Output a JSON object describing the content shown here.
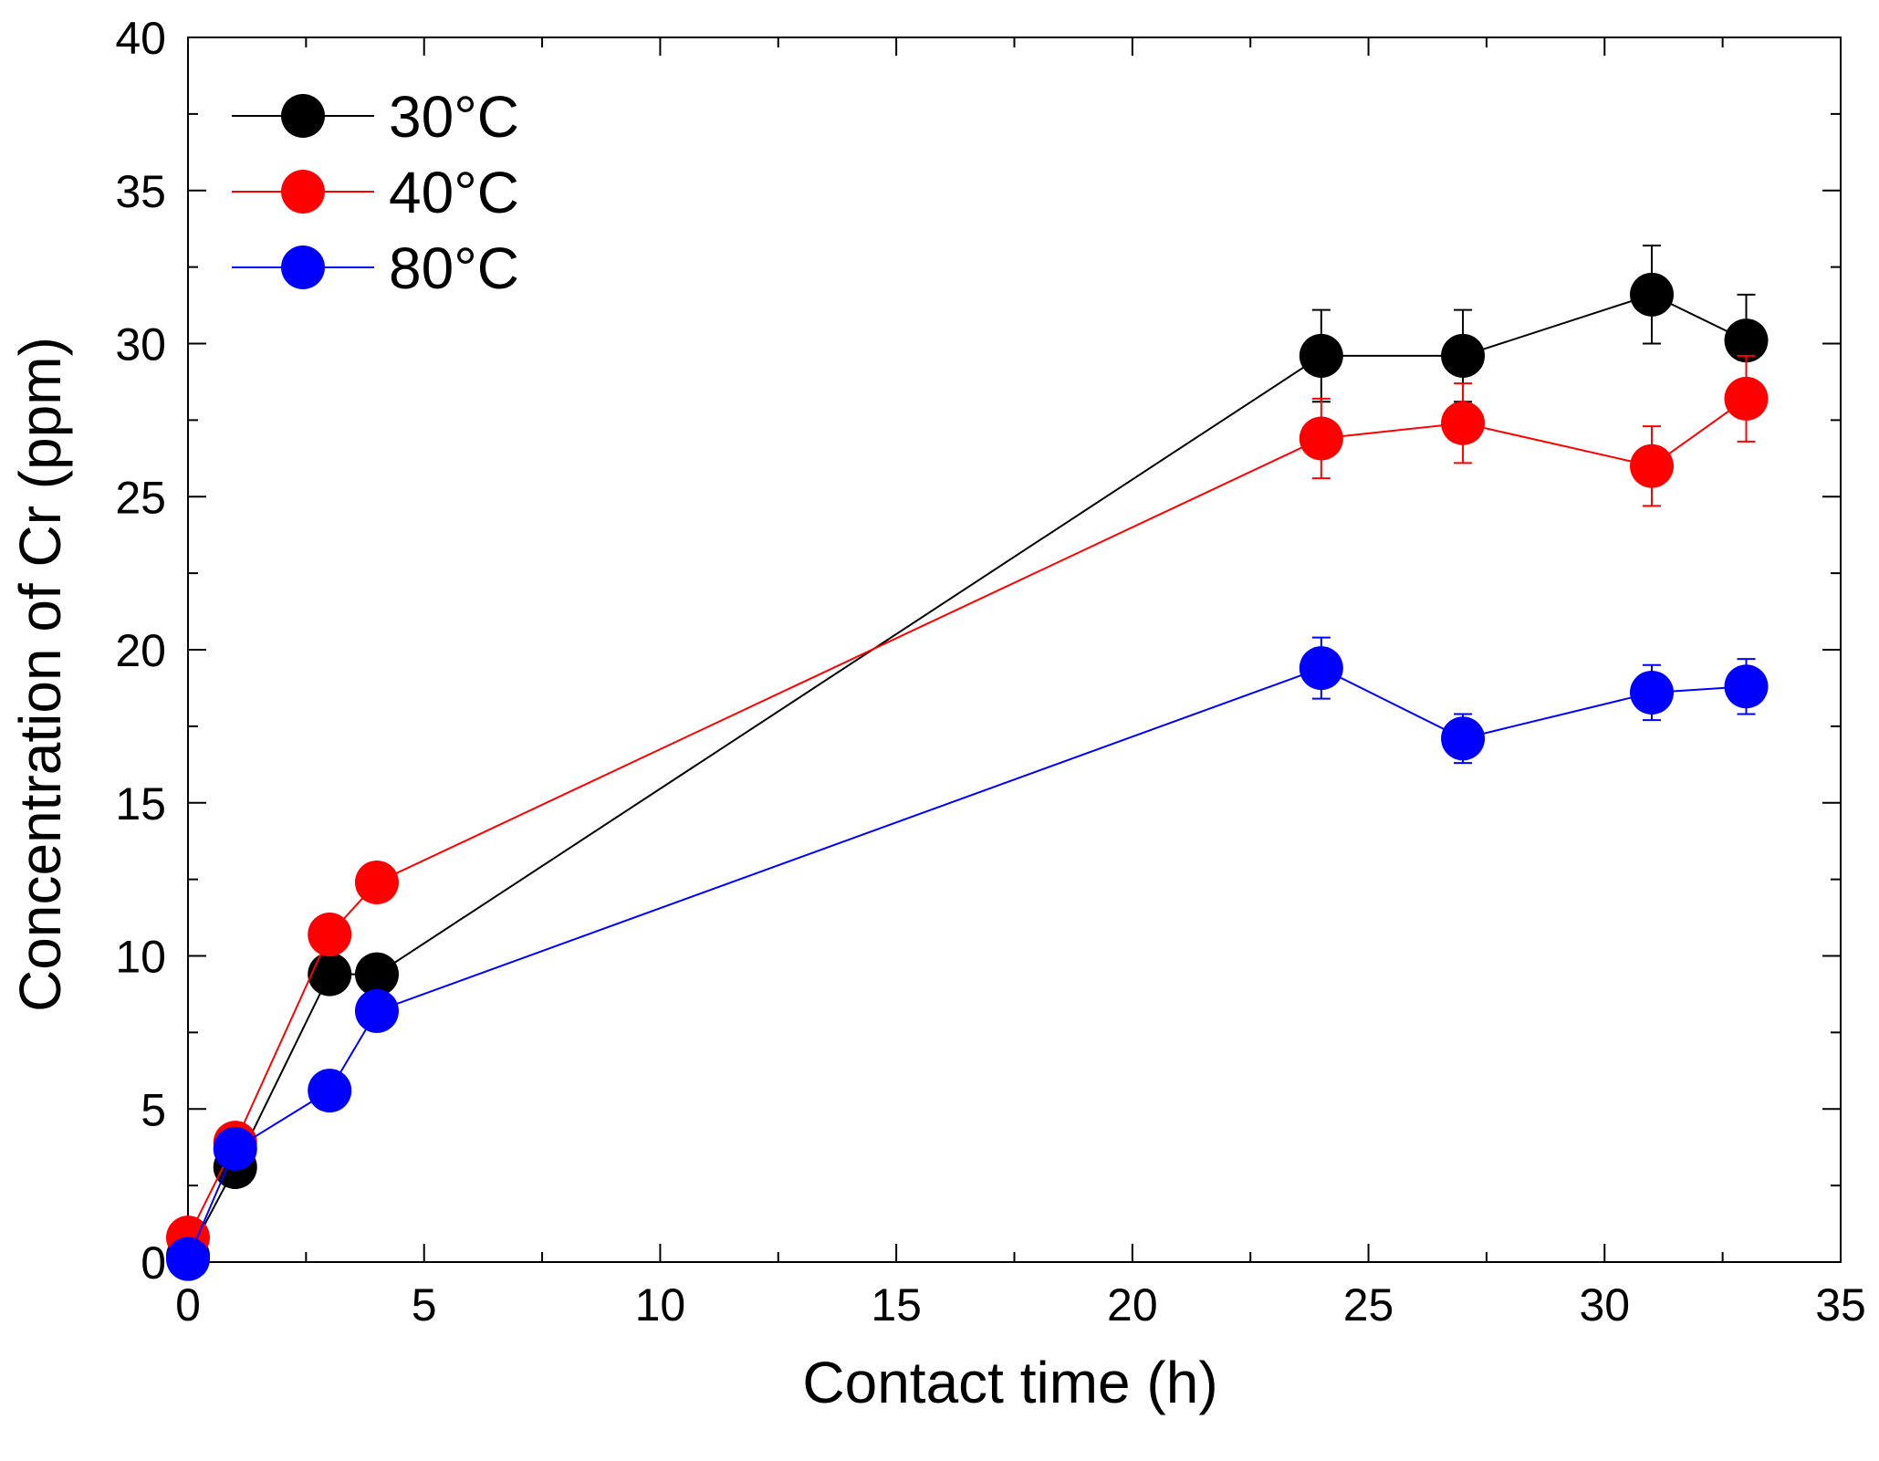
{
  "chart_data": {
    "type": "line",
    "title": "",
    "xlabel": "Contact time (h)",
    "ylabel": "Concentration of Cr (ppm)",
    "xlim": [
      0,
      35
    ],
    "ylim": [
      0,
      40
    ],
    "x_ticks": [
      0,
      5,
      10,
      15,
      20,
      25,
      30,
      35
    ],
    "y_ticks": [
      0,
      5,
      10,
      15,
      20,
      25,
      30,
      35,
      40
    ],
    "x_tick_labels": [
      "0",
      "5",
      "10",
      "15",
      "20",
      "25",
      "30",
      "35"
    ],
    "y_tick_labels": [
      "0",
      "5",
      "10",
      "15",
      "20",
      "25",
      "30",
      "35",
      "40"
    ],
    "grid": false,
    "legend_position": "top-left",
    "series": [
      {
        "name": "30°C",
        "color": "#000000",
        "x": [
          0,
          1,
          3,
          4,
          24,
          27,
          31,
          33
        ],
        "y": [
          0.2,
          3.1,
          9.4,
          9.4,
          29.6,
          29.6,
          31.6,
          30.1
        ],
        "err": [
          0,
          0,
          0,
          0,
          1.5,
          1.5,
          1.6,
          1.5
        ]
      },
      {
        "name": "40°C",
        "color": "#ff0000",
        "x": [
          0,
          1,
          3,
          4,
          24,
          27,
          31,
          33
        ],
        "y": [
          0.8,
          3.9,
          10.7,
          12.4,
          26.9,
          27.4,
          26.0,
          28.2
        ],
        "err": [
          0,
          0.3,
          0,
          0.5,
          1.3,
          1.3,
          1.3,
          1.4
        ]
      },
      {
        "name": "80°C",
        "color": "#0000ff",
        "x": [
          0,
          1,
          3,
          4,
          24,
          27,
          31,
          33
        ],
        "y": [
          0.1,
          3.7,
          5.6,
          8.2,
          19.4,
          17.1,
          18.6,
          18.8
        ],
        "err": [
          0,
          0,
          0,
          0,
          1.0,
          0.8,
          0.9,
          0.9
        ]
      }
    ]
  }
}
